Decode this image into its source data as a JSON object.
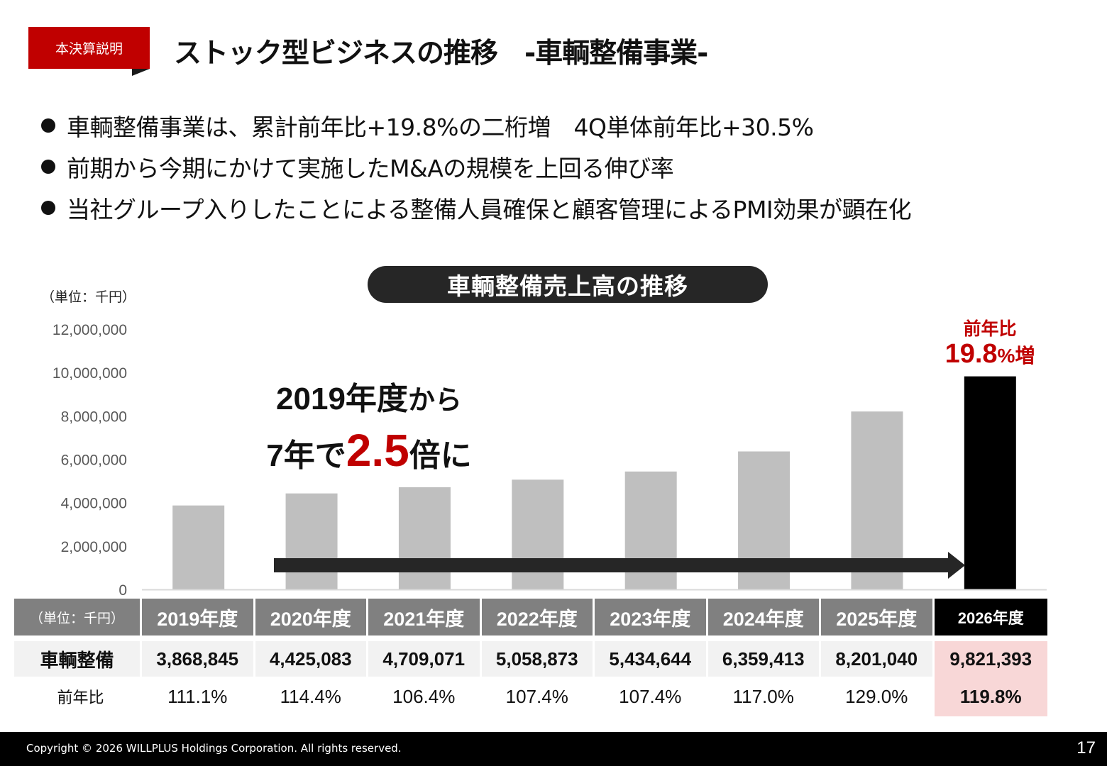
{
  "header": {
    "tag": "本決算説明",
    "title": "ストック型ビジネスの推移　-車輌整備事業-"
  },
  "bullets": [
    "車輌整備事業は、累計前年比+19.8%の二桁増　4Q単体前年比+30.5%",
    "前期から今期にかけて実施したM&Aの規模を上回る伸び率",
    "当社グループ入りしたことによる整備人員確保と顧客管理によるPMI効果が顕在化"
  ],
  "chart_title": "車輌整備売上高の推移",
  "unit_label": "（単位：千円）",
  "callout": {
    "line1_main": "2019年度",
    "line1_small": "から",
    "line2_pre": "7年で",
    "line2_big": "2.5",
    "line2_post": "倍に"
  },
  "yoy_callout": {
    "label": "前年比",
    "value": "19.8",
    "suffix": "%増"
  },
  "colors": {
    "accent_red": "#c00000",
    "bar_gray": "#bfbfbf",
    "bar_highlight": "#000000",
    "arrow": "#262626"
  },
  "chart_data": {
    "type": "bar",
    "categories": [
      "2019年度",
      "2020年度",
      "2021年度",
      "2022年度",
      "2023年度",
      "2024年度",
      "2025年度",
      "2026年度"
    ],
    "values": [
      3868845,
      4425083,
      4709071,
      5058873,
      5434644,
      6359413,
      8201040,
      9821393
    ],
    "highlight_index": 7,
    "ylim": [
      0,
      12000000
    ],
    "yticks": [
      "0",
      "2,000,000",
      "4,000,000",
      "6,000,000",
      "8,000,000",
      "10,000,000",
      "12,000,000"
    ],
    "ytick_values": [
      0,
      2000000,
      4000000,
      6000000,
      8000000,
      10000000,
      12000000
    ],
    "grid": false,
    "legend": "none"
  },
  "table": {
    "unit_label": "（単位：千円）",
    "years": [
      "2019年度",
      "2020年度",
      "2021年度",
      "2022年度",
      "2023年度",
      "2024年度",
      "2025年度",
      "2026年度"
    ],
    "row_label": "車輌整備",
    "values": [
      "3,868,845",
      "4,425,083",
      "4,709,071",
      "5,058,873",
      "5,434,644",
      "6,359,413",
      "8,201,040",
      "9,821,393"
    ],
    "yoy_label": "前年比",
    "yoy": [
      "111.1%",
      "114.4%",
      "106.4%",
      "107.4%",
      "107.4%",
      "117.0%",
      "129.0%",
      "119.8%"
    ]
  },
  "footer": {
    "copyright": "Copyright © 2026 WILLPLUS Holdings Corporation. All rights reserved.",
    "page": "17"
  }
}
